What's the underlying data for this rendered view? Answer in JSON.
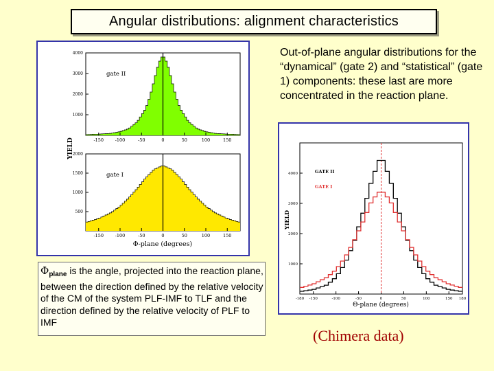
{
  "slide": {
    "title": "Angular distributions: alignment characteristics",
    "description": "Out-of-plane angular distributions for the “dynamical” (gate 2) and “statistical” (gate 1) components: these last are more concentrated in the reaction plane.",
    "caption_symbol": "Φ",
    "caption_subscript": "plane",
    "caption_text": " is the angle, projected into  the reaction plane, between the direction defined by the relative velocity of the CM of the system PLF-IMF to TLF and the direction defined by the relative velocity of PLF to IMF",
    "source_note": "(Chimera data)"
  },
  "colors": {
    "background": "#ffffcc",
    "panel_border": "#3333aa",
    "green_fill": "#80ff00",
    "yellow_fill": "#ffe800",
    "gate1_line": "#e03030",
    "gate2_line": "#000000",
    "source_note": "#a00000"
  },
  "chart_data": [
    {
      "type": "area",
      "panel": "left-top",
      "label": "gate II",
      "ylabel": "YIELD",
      "xlim": [
        -180,
        180
      ],
      "ylim": [
        0,
        4000
      ],
      "xticks": [
        "-150",
        "-100",
        "-50",
        "0",
        "50",
        "100",
        "150"
      ],
      "yticks": [
        "1000",
        "2000",
        "3000",
        "4000"
      ],
      "x": [
        -180,
        -150,
        -120,
        -100,
        -80,
        -60,
        -40,
        -30,
        -20,
        -10,
        0,
        10,
        20,
        30,
        40,
        60,
        80,
        100,
        120,
        150,
        180
      ],
      "values": [
        40,
        60,
        100,
        180,
        320,
        650,
        1300,
        1900,
        2700,
        3500,
        3900,
        3500,
        2700,
        1900,
        1300,
        650,
        320,
        180,
        100,
        60,
        40
      ]
    },
    {
      "type": "area",
      "panel": "left-bottom",
      "label": "gate I",
      "xlabel": "Φ-plane (degrees)",
      "ylabel": "YIELD",
      "xlim": [
        -180,
        180
      ],
      "ylim": [
        0,
        2000
      ],
      "xticks": [
        "-150",
        "-100",
        "-50",
        "0",
        "50",
        "100",
        "150"
      ],
      "yticks": [
        "500",
        "1000",
        "1500",
        "2000"
      ],
      "x": [
        -180,
        -150,
        -120,
        -100,
        -80,
        -60,
        -40,
        -20,
        0,
        20,
        40,
        60,
        80,
        100,
        120,
        150,
        180
      ],
      "values": [
        220,
        320,
        480,
        640,
        850,
        1100,
        1380,
        1600,
        1700,
        1600,
        1380,
        1100,
        850,
        640,
        480,
        320,
        220
      ]
    },
    {
      "type": "line",
      "panel": "right",
      "xlabel": "Θ-plane (degrees)",
      "ylabel": "YIELD",
      "xlim": [
        -180,
        180
      ],
      "ylim": [
        0,
        5000
      ],
      "xticks": [
        "-180",
        "-150",
        "-100",
        "-50",
        "0",
        "50",
        "100",
        "150",
        "180"
      ],
      "yticks": [
        "1000",
        "2000",
        "3000",
        "4000"
      ],
      "series": [
        {
          "name": "GATE II",
          "x": [
            -180,
            -150,
            -120,
            -100,
            -80,
            -60,
            -40,
            -20,
            0,
            20,
            40,
            60,
            80,
            100,
            120,
            150,
            180
          ],
          "values": [
            80,
            150,
            300,
            550,
            1000,
            1700,
            2700,
            3800,
            4600,
            3800,
            2700,
            1700,
            1000,
            550,
            300,
            150,
            80
          ]
        },
        {
          "name": "GATE I",
          "x": [
            -180,
            -150,
            -120,
            -100,
            -80,
            -60,
            -40,
            -20,
            0,
            20,
            40,
            60,
            80,
            100,
            120,
            150,
            180
          ],
          "values": [
            200,
            330,
            550,
            800,
            1200,
            1750,
            2400,
            3100,
            3450,
            3100,
            2400,
            1750,
            1200,
            800,
            550,
            330,
            200
          ]
        }
      ]
    }
  ]
}
